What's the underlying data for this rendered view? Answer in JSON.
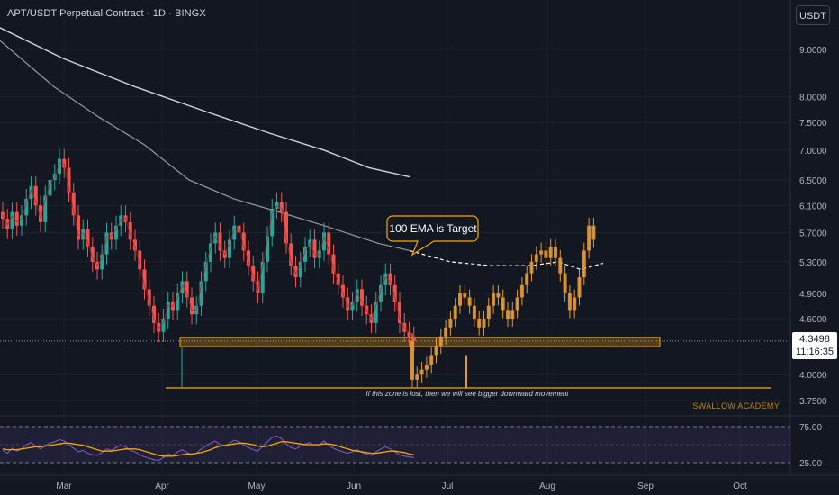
{
  "header": {
    "title": "APT/USDT Perpetual Contract · 1D · BINGX",
    "currency_button": "USDT"
  },
  "price_tag": {
    "price": "4.3498",
    "countdown": "11:16:35"
  },
  "watermark": "SWALLOW ACADEMY",
  "colors": {
    "background": "#131722",
    "up": "#26a69a",
    "down": "#ef5350",
    "projection": "#e39a32",
    "ema": "#d1d4dc",
    "zone": "#f7a600",
    "rsi": "#7e57c2",
    "rsi_ma": "#f7a600"
  },
  "chart_data": {
    "type": "candlestick",
    "title": "APT/USDT Perpetual Contract · 1D · BINGX",
    "y_axis": {
      "scale": "log",
      "ticks": [
        9.0,
        8.0,
        7.5,
        7.0,
        6.5,
        6.1,
        5.7,
        5.3,
        4.9,
        4.6,
        4.0,
        3.75
      ],
      "tick_labels": [
        "9.0000",
        "8.0000",
        "7.5000",
        "7.0000",
        "6.5000",
        "6.1000",
        "5.7000",
        "5.3000",
        "4.9000",
        "4.6000",
        "4.0000",
        "3.7500"
      ],
      "range": [
        3.6,
        10.0
      ]
    },
    "x_axis": {
      "ticks": [
        "Mar",
        "Apr",
        "May",
        "Jun",
        "Jul",
        "Aug",
        "Sep",
        "Oct"
      ]
    },
    "current_price": 4.3498,
    "support_zone": {
      "low": 4.29,
      "high": 4.39
    },
    "lower_line": 3.87,
    "annotations": [
      {
        "text": "100 EMA is Target",
        "style": "callout"
      },
      {
        "text": "If this zone is lost, then we will see bigger downward movement",
        "style": "note"
      }
    ],
    "ema_200": [
      9.5,
      8.8,
      8.2,
      7.7,
      7.3,
      7.0,
      6.7,
      6.55
    ],
    "ema_100": [
      9.2,
      8.2,
      7.6,
      7.1,
      6.5,
      6.2,
      6.0,
      5.8,
      5.55,
      5.45
    ],
    "ema_100_projection": [
      5.45,
      5.3,
      5.25,
      5.25,
      5.3,
      5.2,
      5.28
    ],
    "historical_closes": [
      5.9,
      5.75,
      6.0,
      5.8,
      5.95,
      6.2,
      6.4,
      6.1,
      5.85,
      6.25,
      6.5,
      6.6,
      6.85,
      6.7,
      6.3,
      5.95,
      5.6,
      5.75,
      5.5,
      5.3,
      5.2,
      5.4,
      5.7,
      5.6,
      5.8,
      5.95,
      5.85,
      5.6,
      5.45,
      5.2,
      4.95,
      4.75,
      4.55,
      4.45,
      4.6,
      4.8,
      4.7,
      4.9,
      5.05,
      4.85,
      4.65,
      4.75,
      5.05,
      5.3,
      5.55,
      5.7,
      5.45,
      5.35,
      5.6,
      5.8,
      5.7,
      5.45,
      5.25,
      5.05,
      4.9,
      5.3,
      5.65,
      6.05,
      6.15,
      6.0,
      5.55,
      5.25,
      5.1,
      5.3,
      5.5,
      5.6,
      5.35,
      5.45,
      5.7,
      5.4,
      5.15,
      5.0,
      4.85,
      4.7,
      4.8,
      4.95,
      4.75,
      4.65,
      4.55,
      4.8,
      5.0,
      5.15,
      5.0,
      4.8,
      4.55,
      4.45,
      4.4,
      4.35
    ],
    "projected_closes": [
      3.95,
      4.0,
      4.05,
      4.1,
      4.2,
      4.3,
      4.4,
      4.5,
      4.6,
      4.75,
      4.9,
      4.85,
      4.75,
      4.6,
      4.5,
      4.6,
      4.75,
      4.9,
      4.85,
      4.7,
      4.6,
      4.7,
      4.85,
      5.0,
      5.15,
      5.3,
      5.4,
      5.45,
      5.35,
      5.5,
      5.35,
      5.15,
      4.9,
      4.7,
      4.85,
      5.1,
      5.45,
      5.8,
      5.6
    ],
    "rsi": {
      "levels": [
        75,
        25
      ],
      "level_labels": [
        "75.00",
        "25.00"
      ],
      "values": [
        42,
        38,
        45,
        41,
        44,
        50,
        53,
        48,
        44,
        49,
        52,
        54,
        57,
        55,
        50,
        45,
        40,
        42,
        38,
        36,
        35,
        39,
        44,
        42,
        46,
        49,
        47,
        42,
        40,
        36,
        33,
        31,
        29,
        28,
        32,
        37,
        35,
        40,
        43,
        39,
        36,
        38,
        44,
        48,
        52,
        55,
        50,
        48,
        52,
        56,
        54,
        49,
        46,
        43,
        41,
        48,
        54,
        60,
        62,
        58,
        51,
        46,
        44,
        48,
        51,
        53,
        48,
        50,
        55,
        49,
        45,
        42,
        40,
        38,
        40,
        43,
        39,
        37,
        35,
        40,
        44,
        47,
        44,
        40,
        36,
        34,
        33,
        32
      ],
      "ma_values": [
        44,
        43,
        43,
        43,
        44,
        45,
        46,
        47,
        47,
        48,
        49,
        50,
        51,
        52,
        52,
        51,
        50,
        49,
        47,
        45,
        43,
        41,
        41,
        41,
        42,
        43,
        44,
        44,
        44,
        43,
        41,
        39,
        37,
        35,
        34,
        34,
        34,
        35,
        36,
        37,
        37,
        38,
        39,
        41,
        43,
        46,
        48,
        49,
        50,
        51,
        52,
        52,
        51,
        50,
        48,
        47,
        48,
        50,
        52,
        54,
        54,
        53,
        52,
        51,
        50,
        50,
        50,
        50,
        51,
        51,
        50,
        48,
        46,
        44,
        42,
        41,
        40,
        39,
        38,
        38,
        39,
        40,
        41,
        41,
        40,
        39,
        37,
        36
      ]
    }
  }
}
